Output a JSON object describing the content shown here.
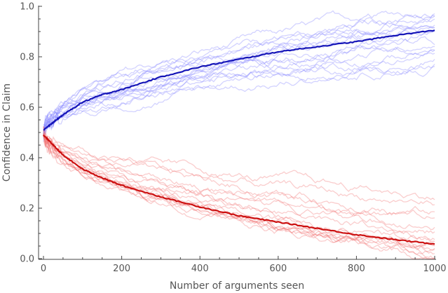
{
  "chart_data": {
    "type": "line",
    "title": "",
    "xlabel": "Number of arguments seen",
    "ylabel": "Confidence in Claim",
    "xlim": [
      0,
      1000
    ],
    "ylim": [
      0,
      1
    ],
    "x_ticks": [
      "0",
      "200",
      "400",
      "600",
      "800",
      "1000"
    ],
    "y_ticks": [
      "0.0",
      "0.2",
      "0.4",
      "0.6",
      "0.8",
      "1.0"
    ],
    "grid": false,
    "legend": "none",
    "colors": {
      "blue_mean": "#1515b8",
      "blue_runs": "#8080ff",
      "red_mean": "#cc1111",
      "red_runs": "#f07070"
    },
    "series": [
      {
        "color": "blue",
        "x": [
          0,
          25,
          50,
          100,
          150,
          200,
          300,
          400,
          500,
          600,
          700,
          800,
          900,
          1000
        ],
        "values": [
          0.51,
          0.54,
          0.57,
          0.62,
          0.65,
          0.67,
          0.72,
          0.76,
          0.79,
          0.82,
          0.84,
          0.86,
          0.885,
          0.905
        ]
      },
      {
        "color": "red",
        "x": [
          0,
          25,
          50,
          100,
          150,
          200,
          300,
          400,
          500,
          600,
          700,
          800,
          900,
          1000
        ],
        "values": [
          0.49,
          0.45,
          0.41,
          0.355,
          0.32,
          0.29,
          0.245,
          0.205,
          0.17,
          0.145,
          0.12,
          0.095,
          0.075,
          0.058
        ]
      }
    ],
    "runs": {
      "blue_final": [
        0.98,
        0.99,
        0.96,
        0.94,
        0.93,
        0.91,
        0.9,
        0.88,
        0.87,
        0.86,
        0.85,
        0.83,
        0.81,
        0.79,
        0.77,
        0.76,
        0.95
      ],
      "red_final": [
        0.25,
        0.22,
        0.19,
        0.16,
        0.14,
        0.12,
        0.1,
        0.08,
        0.06,
        0.05,
        0.04,
        0.03,
        0.02,
        0.01,
        0.0,
        0.0
      ]
    }
  }
}
